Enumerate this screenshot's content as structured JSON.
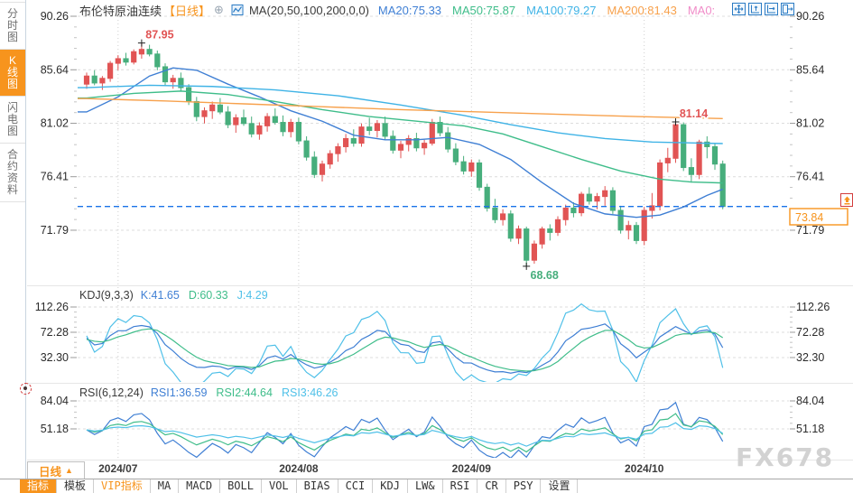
{
  "sidebar": {
    "items": [
      {
        "label": "分时图",
        "active": false
      },
      {
        "label": "K线图",
        "active": true
      },
      {
        "label": "闪电图",
        "active": false
      },
      {
        "label": "合约资料",
        "active": false
      }
    ]
  },
  "header": {
    "title": "布伦特原油连续",
    "period_tag": "【日线】",
    "add_icon_glyph": "⊕",
    "ma_param_label": "MA(20,50,100,200,0,0)",
    "ma_values": [
      {
        "label": "MA20:75.33",
        "color": "#3f7fd4"
      },
      {
        "label": "MA50:75.87",
        "color": "#3fbd8a"
      },
      {
        "label": "MA100:79.27",
        "color": "#3fb3e6"
      },
      {
        "label": "MA200:81.43",
        "color": "#f7a14c"
      },
      {
        "label": "MA0:",
        "color": "#f08cc8"
      }
    ],
    "toolbar_icons": [
      "pan-icon",
      "zoom-vertical-icon",
      "zoom-horizontal-icon",
      "detach-window-icon"
    ]
  },
  "kdj_header": {
    "param": "KDJ(9,3,3)",
    "values": [
      {
        "label": "K:41.65",
        "color": "#3f7fd4"
      },
      {
        "label": "D:60.33",
        "color": "#3fbd8a"
      },
      {
        "label": "J:4.29",
        "color": "#4fc0e8"
      }
    ]
  },
  "rsi_header": {
    "param": "RSI(6,12,24)",
    "values": [
      {
        "label": "RSI1:36.59",
        "color": "#3f7fd4"
      },
      {
        "label": "RSI2:44.64",
        "color": "#3fbd8a"
      },
      {
        "label": "RSI3:46.26",
        "color": "#4fc0e8"
      }
    ]
  },
  "bottom": {
    "period_label": "日线",
    "caret_glyph": "▲",
    "tabs": [
      {
        "label": "指标",
        "active": true,
        "vip": false
      },
      {
        "label": "模板",
        "active": false,
        "vip": false
      },
      {
        "label": "VIP指标",
        "active": false,
        "vip": true
      },
      {
        "label": "MA",
        "active": false,
        "vip": false
      },
      {
        "label": "MACD",
        "active": false,
        "vip": false
      },
      {
        "label": "BOLL",
        "active": false,
        "vip": false
      },
      {
        "label": "VOL",
        "active": false,
        "vip": false
      },
      {
        "label": "BIAS",
        "active": false,
        "vip": false
      },
      {
        "label": "CCI",
        "active": false,
        "vip": false
      },
      {
        "label": "KDJ",
        "active": false,
        "vip": false
      },
      {
        "label": "LW&",
        "active": false,
        "vip": false
      },
      {
        "label": "RSI",
        "active": false,
        "vip": false
      },
      {
        "label": "CR",
        "active": false,
        "vip": false
      },
      {
        "label": "PSY",
        "active": false,
        "vip": false
      },
      {
        "label": "设置",
        "active": false,
        "vip": false
      }
    ]
  },
  "watermark": "FX678",
  "chart_data": {
    "type": "candlestick",
    "title": "布伦特原油连续 日线",
    "up_color": "#e15454",
    "down_color": "#47ae7c",
    "price_axis": {
      "ticks": [
        90.26,
        85.64,
        81.02,
        76.41,
        71.79
      ]
    },
    "x_axis": {
      "labels": [
        "2024/07",
        "2024/08",
        "2024/09",
        "2024/10"
      ],
      "label_indices": [
        4,
        27,
        49,
        71
      ]
    },
    "current_price": 73.84,
    "current_price_label": "73.84",
    "candles": [
      [
        84.4,
        85.4,
        84.0,
        85.1
      ],
      [
        85.1,
        85.6,
        84.3,
        84.5
      ],
      [
        84.5,
        85.1,
        83.9,
        84.9
      ],
      [
        84.9,
        86.4,
        84.6,
        86.2
      ],
      [
        86.2,
        86.9,
        85.6,
        86.6
      ],
      [
        86.6,
        87.1,
        86.0,
        86.3
      ],
      [
        86.3,
        87.4,
        86.1,
        87.2
      ],
      [
        87.0,
        87.95,
        86.6,
        87.4
      ],
      [
        87.4,
        87.8,
        86.8,
        87.0
      ],
      [
        87.0,
        87.3,
        85.6,
        85.9
      ],
      [
        85.9,
        86.2,
        84.3,
        84.6
      ],
      [
        84.6,
        85.2,
        84.0,
        84.9
      ],
      [
        84.9,
        85.4,
        83.8,
        84.1
      ],
      [
        84.1,
        84.4,
        82.6,
        82.9
      ],
      [
        82.9,
        83.3,
        81.2,
        81.6
      ],
      [
        81.6,
        82.4,
        81.0,
        82.1
      ],
      [
        82.1,
        82.9,
        81.4,
        82.6
      ],
      [
        82.6,
        83.2,
        81.8,
        82.0
      ],
      [
        82.0,
        82.5,
        80.6,
        80.9
      ],
      [
        80.9,
        81.8,
        80.2,
        81.5
      ],
      [
        81.5,
        82.2,
        80.8,
        81.0
      ],
      [
        81.0,
        81.6,
        79.8,
        80.1
      ],
      [
        80.1,
        81.1,
        79.6,
        80.8
      ],
      [
        80.8,
        81.9,
        80.3,
        81.6
      ],
      [
        81.6,
        82.3,
        80.9,
        81.1
      ],
      [
        81.1,
        81.7,
        79.9,
        80.3
      ],
      [
        80.3,
        81.4,
        79.8,
        81.1
      ],
      [
        81.1,
        81.5,
        79.2,
        79.5
      ],
      [
        79.5,
        79.9,
        77.8,
        78.1
      ],
      [
        78.1,
        78.6,
        76.3,
        76.6
      ],
      [
        76.6,
        77.8,
        76.0,
        77.5
      ],
      [
        77.5,
        78.7,
        77.1,
        78.4
      ],
      [
        78.4,
        79.3,
        77.7,
        79.0
      ],
      [
        79.0,
        80.1,
        78.5,
        79.7
      ],
      [
        79.7,
        80.5,
        79.0,
        79.3
      ],
      [
        79.3,
        81.0,
        79.0,
        80.7
      ],
      [
        80.7,
        81.5,
        80.0,
        80.4
      ],
      [
        80.4,
        81.3,
        79.8,
        81.0
      ],
      [
        81.0,
        81.6,
        79.6,
        79.9
      ],
      [
        79.9,
        80.4,
        78.4,
        78.7
      ],
      [
        78.7,
        79.5,
        78.0,
        79.2
      ],
      [
        79.2,
        80.0,
        78.6,
        79.7
      ],
      [
        79.7,
        80.2,
        78.6,
        78.9
      ],
      [
        78.9,
        79.6,
        78.3,
        79.3
      ],
      [
        79.3,
        81.4,
        79.1,
        81.1
      ],
      [
        81.1,
        81.6,
        79.9,
        80.2
      ],
      [
        80.2,
        80.7,
        78.5,
        78.8
      ],
      [
        78.8,
        79.3,
        77.4,
        77.7
      ],
      [
        77.7,
        78.2,
        76.6,
        76.9
      ],
      [
        76.9,
        77.9,
        76.4,
        77.6
      ],
      [
        77.6,
        77.9,
        75.2,
        75.5
      ],
      [
        75.5,
        75.8,
        73.4,
        73.7
      ],
      [
        73.7,
        74.5,
        72.4,
        72.7
      ],
      [
        72.7,
        73.6,
        72.2,
        73.2
      ],
      [
        73.2,
        73.5,
        70.8,
        71.1
      ],
      [
        71.1,
        72.2,
        70.6,
        71.9
      ],
      [
        71.9,
        72.1,
        68.68,
        69.2
      ],
      [
        69.2,
        70.9,
        68.9,
        70.6
      ],
      [
        70.6,
        72.1,
        70.2,
        71.9
      ],
      [
        71.9,
        72.3,
        70.9,
        71.6
      ],
      [
        71.6,
        73.0,
        71.3,
        72.7
      ],
      [
        72.7,
        74.0,
        72.2,
        73.7
      ],
      [
        73.7,
        74.2,
        72.9,
        73.3
      ],
      [
        73.3,
        75.1,
        73.0,
        74.9
      ],
      [
        74.9,
        75.5,
        74.0,
        74.3
      ],
      [
        74.3,
        75.0,
        73.6,
        74.7
      ],
      [
        74.7,
        75.6,
        73.9,
        75.2
      ],
      [
        75.2,
        75.5,
        73.2,
        73.5
      ],
      [
        73.5,
        73.9,
        71.5,
        71.8
      ],
      [
        71.8,
        72.6,
        71.0,
        72.2
      ],
      [
        72.2,
        72.5,
        70.6,
        70.9
      ],
      [
        70.9,
        73.8,
        70.5,
        73.5
      ],
      [
        73.5,
        75.0,
        72.8,
        73.9
      ],
      [
        73.9,
        77.9,
        73.5,
        77.6
      ],
      [
        77.6,
        78.9,
        76.8,
        78.0
      ],
      [
        78.0,
        81.14,
        77.6,
        80.9
      ],
      [
        80.9,
        81.1,
        76.9,
        77.2
      ],
      [
        77.2,
        78.0,
        75.9,
        76.6
      ],
      [
        76.6,
        79.6,
        76.2,
        79.4
      ],
      [
        79.4,
        79.9,
        78.0,
        79.0
      ],
      [
        79.0,
        79.3,
        77.0,
        77.5
      ],
      [
        77.5,
        77.8,
        73.6,
        73.84
      ]
    ],
    "ma_lines": [
      {
        "name": "MA20",
        "color": "#3f7fd4",
        "points": [
          [
            0,
            82.0
          ],
          [
            4,
            83.3
          ],
          [
            8,
            85.1
          ],
          [
            11,
            85.8
          ],
          [
            14,
            85.6
          ],
          [
            18,
            84.4
          ],
          [
            22,
            83.3
          ],
          [
            26,
            82.1
          ],
          [
            30,
            81.2
          ],
          [
            34,
            80.0
          ],
          [
            38,
            79.6
          ],
          [
            42,
            79.6
          ],
          [
            46,
            79.8
          ],
          [
            50,
            79.2
          ],
          [
            54,
            77.9
          ],
          [
            58,
            75.9
          ],
          [
            62,
            74.1
          ],
          [
            66,
            73.2
          ],
          [
            70,
            72.9
          ],
          [
            73,
            73.1
          ],
          [
            76,
            73.8
          ],
          [
            79,
            74.8
          ],
          [
            81,
            75.33
          ]
        ]
      },
      {
        "name": "MA50",
        "color": "#3fbd8a",
        "points": [
          [
            0,
            83.2
          ],
          [
            6,
            83.6
          ],
          [
            12,
            83.8
          ],
          [
            18,
            83.5
          ],
          [
            24,
            82.9
          ],
          [
            30,
            82.2
          ],
          [
            36,
            81.6
          ],
          [
            42,
            81.2
          ],
          [
            48,
            80.8
          ],
          [
            53,
            80.1
          ],
          [
            58,
            79.0
          ],
          [
            63,
            77.9
          ],
          [
            68,
            76.9
          ],
          [
            73,
            76.2
          ],
          [
            77,
            75.95
          ],
          [
            81,
            75.87
          ]
        ]
      },
      {
        "name": "MA100",
        "color": "#3fb3e6",
        "points": [
          [
            0,
            84.1
          ],
          [
            8,
            84.3
          ],
          [
            16,
            84.2
          ],
          [
            24,
            83.9
          ],
          [
            32,
            83.4
          ],
          [
            40,
            82.6
          ],
          [
            48,
            81.7
          ],
          [
            54,
            80.9
          ],
          [
            60,
            80.2
          ],
          [
            66,
            79.7
          ],
          [
            72,
            79.4
          ],
          [
            81,
            79.27
          ]
        ]
      },
      {
        "name": "MA200",
        "color": "#f7a14c",
        "points": [
          [
            0,
            83.15
          ],
          [
            10,
            82.95
          ],
          [
            20,
            82.7
          ],
          [
            30,
            82.45
          ],
          [
            40,
            82.2
          ],
          [
            50,
            82.0
          ],
          [
            60,
            81.8
          ],
          [
            70,
            81.6
          ],
          [
            81,
            81.43
          ]
        ]
      }
    ],
    "annotations": [
      {
        "text": "87.95",
        "index": 7,
        "price": 87.95,
        "color": "#e15454",
        "position": "above"
      },
      {
        "text": "81.14",
        "index": 75,
        "price": 81.14,
        "color": "#e15454",
        "position": "above"
      },
      {
        "text": "68.68",
        "index": 56,
        "price": 68.68,
        "color": "#47ae7c",
        "position": "below"
      }
    ],
    "kdj_panel": {
      "params": [
        9,
        3,
        3
      ],
      "ticks": [
        112.26,
        72.28,
        32.3
      ],
      "colors": [
        "#3f7fd4",
        "#3fbd8a",
        "#4fc0e8"
      ]
    },
    "rsi_panel": {
      "params": [
        6,
        12,
        24
      ],
      "ticks": [
        84.04,
        51.18
      ],
      "colors": [
        "#3f7fd4",
        "#3fbd8a",
        "#4fc0e8"
      ]
    }
  }
}
